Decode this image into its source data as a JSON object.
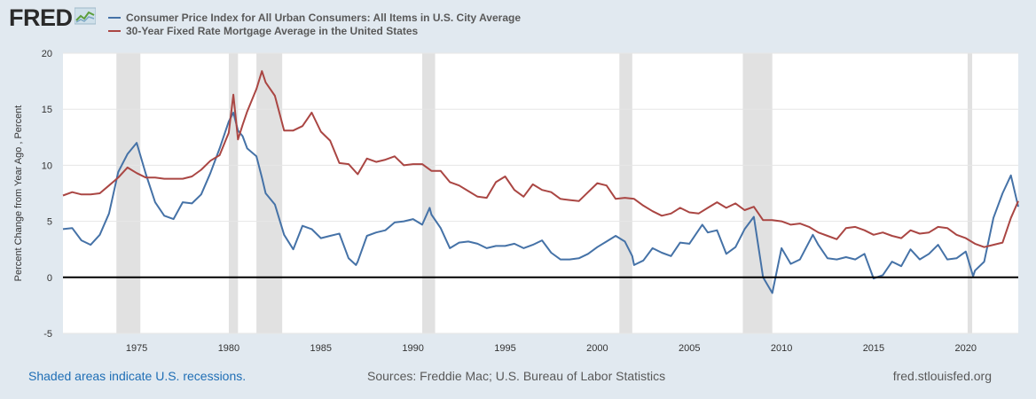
{
  "header": {
    "logo_text": "FRED",
    "logo_icon": "chart-line-icon"
  },
  "footer": {
    "recession_note": "Shaded areas indicate U.S. recessions.",
    "sources": "Sources: Freddie Mac; U.S. Bureau of Labor Statistics",
    "site": "fred.stlouisfed.org"
  },
  "colors": {
    "background": "#e1e9f0",
    "plot_bg": "#ffffff",
    "cpi": "#4572a7",
    "mortgage": "#aa4643",
    "recession": "#e1e1e1",
    "zero_line": "#000000"
  },
  "chart_data": {
    "type": "line",
    "ylabel": "Percent Change from Year Ago , Percent",
    "xlabel": "",
    "xlim": [
      1971.0,
      2022.85
    ],
    "ylim": [
      -5,
      20
    ],
    "yticks": [
      -5,
      0,
      5,
      10,
      15,
      20
    ],
    "xticks": [
      1975,
      1980,
      1985,
      1990,
      1995,
      2000,
      2005,
      2010,
      2015,
      2020
    ],
    "grid": "horizontal",
    "legend_position": "top-left",
    "zero_line": 0,
    "recessions": [
      [
        1973.9,
        1975.2
      ],
      [
        1980.0,
        1980.5
      ],
      [
        1981.5,
        1982.9
      ],
      [
        1990.5,
        1991.2
      ],
      [
        2001.2,
        2001.9
      ],
      [
        2007.9,
        2009.5
      ],
      [
        2020.1,
        2020.35
      ]
    ],
    "series": [
      {
        "name": "Consumer Price Index for All Urban Consumers: All Items in U.S. City Average",
        "color": "#4572a7",
        "x": [
          1971.0,
          1971.5,
          1972.0,
          1972.5,
          1973.0,
          1973.5,
          1974.0,
          1974.5,
          1975.0,
          1975.5,
          1976.0,
          1976.5,
          1977.0,
          1977.5,
          1978.0,
          1978.5,
          1979.0,
          1979.5,
          1980.0,
          1980.25,
          1980.5,
          1980.75,
          1981.0,
          1981.5,
          1981.8,
          1982.0,
          1982.5,
          1983.0,
          1983.5,
          1984.0,
          1984.5,
          1985.0,
          1985.5,
          1986.0,
          1986.5,
          1986.9,
          1987.0,
          1987.5,
          1988.0,
          1988.5,
          1989.0,
          1989.5,
          1990.0,
          1990.5,
          1990.9,
          1991.0,
          1991.5,
          1992.0,
          1992.5,
          1993.0,
          1993.5,
          1994.0,
          1994.5,
          1995.0,
          1995.5,
          1996.0,
          1996.5,
          1997.0,
          1997.5,
          1998.0,
          1998.5,
          1999.0,
          1999.5,
          2000.0,
          2000.5,
          2001.0,
          2001.5,
          2001.9,
          2002.0,
          2002.5,
          2003.0,
          2003.5,
          2004.0,
          2004.5,
          2005.0,
          2005.7,
          2006.0,
          2006.5,
          2007.0,
          2007.5,
          2008.0,
          2008.5,
          2008.9,
          2009.0,
          2009.5,
          2010.0,
          2010.5,
          2011.0,
          2011.7,
          2012.0,
          2012.5,
          2013.0,
          2013.5,
          2014.0,
          2014.5,
          2015.0,
          2015.5,
          2016.0,
          2016.5,
          2017.0,
          2017.5,
          2018.0,
          2018.5,
          2019.0,
          2019.5,
          2020.0,
          2020.4,
          2020.5,
          2021.0,
          2021.5,
          2022.0,
          2022.45,
          2022.85
        ],
        "values": [
          4.3,
          4.4,
          3.3,
          2.9,
          3.8,
          5.7,
          9.4,
          11.0,
          12.0,
          9.2,
          6.7,
          5.5,
          5.2,
          6.7,
          6.6,
          7.4,
          9.3,
          11.5,
          13.9,
          14.7,
          13.1,
          12.6,
          11.5,
          10.8,
          8.9,
          7.5,
          6.5,
          3.8,
          2.5,
          4.6,
          4.3,
          3.5,
          3.7,
          3.9,
          1.7,
          1.1,
          1.4,
          3.7,
          4.0,
          4.2,
          4.9,
          5.0,
          5.2,
          4.7,
          6.2,
          5.6,
          4.4,
          2.6,
          3.1,
          3.2,
          3.0,
          2.6,
          2.8,
          2.8,
          3.0,
          2.6,
          2.9,
          3.3,
          2.2,
          1.6,
          1.6,
          1.7,
          2.1,
          2.7,
          3.2,
          3.7,
          3.2,
          1.9,
          1.1,
          1.5,
          2.6,
          2.2,
          1.9,
          3.1,
          3.0,
          4.7,
          4.0,
          4.2,
          2.1,
          2.7,
          4.3,
          5.4,
          1.1,
          0.0,
          -1.4,
          2.6,
          1.2,
          1.6,
          3.8,
          2.9,
          1.7,
          1.6,
          1.8,
          1.6,
          2.1,
          -0.1,
          0.2,
          1.4,
          1.0,
          2.5,
          1.6,
          2.1,
          2.9,
          1.6,
          1.7,
          2.3,
          0.1,
          0.6,
          1.4,
          5.3,
          7.5,
          9.1,
          6.3
        ]
      },
      {
        "name": "30-Year Fixed Rate Mortgage Average in the United States",
        "color": "#aa4643",
        "x": [
          1971.0,
          1971.5,
          1972.0,
          1972.5,
          1973.0,
          1973.5,
          1974.0,
          1974.5,
          1975.0,
          1975.5,
          1976.0,
          1976.5,
          1977.0,
          1977.5,
          1978.0,
          1978.5,
          1979.0,
          1979.5,
          1980.0,
          1980.25,
          1980.5,
          1980.75,
          1981.0,
          1981.5,
          1981.8,
          1982.0,
          1982.5,
          1983.0,
          1983.5,
          1984.0,
          1984.5,
          1985.0,
          1985.5,
          1986.0,
          1986.5,
          1987.0,
          1987.5,
          1988.0,
          1988.5,
          1989.0,
          1989.5,
          1990.0,
          1990.5,
          1991.0,
          1991.5,
          1992.0,
          1992.5,
          1993.0,
          1993.5,
          1994.0,
          1994.5,
          1995.0,
          1995.5,
          1996.0,
          1996.5,
          1997.0,
          1997.5,
          1998.0,
          1998.5,
          1999.0,
          1999.5,
          2000.0,
          2000.5,
          2001.0,
          2001.5,
          2002.0,
          2002.5,
          2003.0,
          2003.5,
          2004.0,
          2004.5,
          2005.0,
          2005.5,
          2006.0,
          2006.5,
          2007.0,
          2007.5,
          2008.0,
          2008.5,
          2009.0,
          2009.5,
          2010.0,
          2010.5,
          2011.0,
          2011.5,
          2012.0,
          2012.5,
          2013.0,
          2013.5,
          2014.0,
          2014.5,
          2015.0,
          2015.5,
          2016.0,
          2016.5,
          2017.0,
          2017.5,
          2018.0,
          2018.5,
          2019.0,
          2019.5,
          2020.0,
          2020.5,
          2021.0,
          2021.5,
          2022.0,
          2022.45,
          2022.85
        ],
        "values": [
          7.3,
          7.6,
          7.4,
          7.4,
          7.5,
          8.2,
          8.9,
          9.8,
          9.3,
          8.9,
          8.9,
          8.8,
          8.8,
          8.8,
          9.0,
          9.6,
          10.4,
          10.9,
          12.9,
          16.3,
          12.3,
          13.6,
          14.8,
          16.8,
          18.4,
          17.4,
          16.2,
          13.1,
          13.1,
          13.5,
          14.7,
          13.0,
          12.2,
          10.2,
          10.1,
          9.2,
          10.6,
          10.3,
          10.5,
          10.8,
          10.0,
          10.1,
          10.1,
          9.5,
          9.5,
          8.5,
          8.2,
          7.7,
          7.2,
          7.1,
          8.5,
          9.0,
          7.8,
          7.2,
          8.3,
          7.8,
          7.6,
          7.0,
          6.9,
          6.8,
          7.6,
          8.4,
          8.2,
          7.0,
          7.1,
          7.0,
          6.4,
          5.9,
          5.5,
          5.7,
          6.2,
          5.8,
          5.7,
          6.2,
          6.7,
          6.2,
          6.6,
          6.0,
          6.3,
          5.1,
          5.1,
          5.0,
          4.7,
          4.8,
          4.5,
          4.0,
          3.7,
          3.4,
          4.4,
          4.5,
          4.2,
          3.8,
          4.0,
          3.7,
          3.5,
          4.2,
          3.9,
          4.0,
          4.5,
          4.4,
          3.8,
          3.5,
          3.0,
          2.7,
          2.9,
          3.1,
          5.3,
          6.8
        ]
      }
    ]
  }
}
